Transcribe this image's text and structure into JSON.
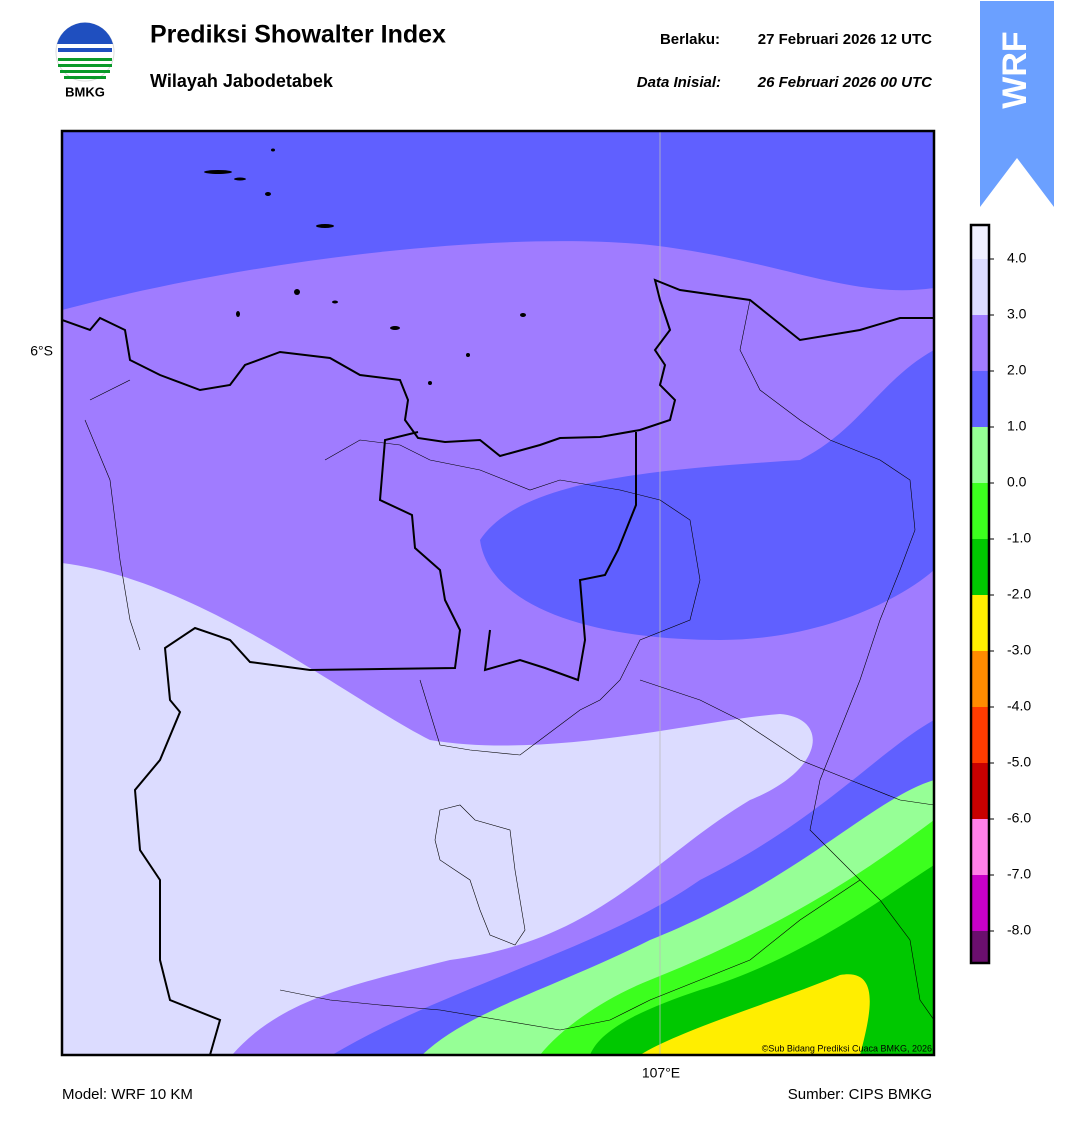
{
  "header": {
    "title": "Prediksi Showalter Index",
    "subtitle": "Wilayah Jabodetabek",
    "valid_label": "Berlaku:",
    "valid_time": "27 Februari 2026 12 UTC",
    "init_label": "Data Inisial:",
    "init_time": "26 Februari 2026 00 UTC",
    "logo_text": "BMKG",
    "banner": "WRF"
  },
  "map": {
    "lat_label": "6°S",
    "lon_label": "107°E",
    "copyright": "©Sub Bidang Prediksi Cuaca BMKG, 2026"
  },
  "colorbar": {
    "colors": [
      "#f0f0ff",
      "#dcdcff",
      "#a07cff",
      "#6060ff",
      "#96ff96",
      "#3cff1e",
      "#00c800",
      "#ffee00",
      "#ff8c00",
      "#ff3c00",
      "#c80000",
      "#ff80e8",
      "#c800c8",
      "#6b0f6e"
    ],
    "ticks": [
      {
        "value": 4,
        "label": "4.0"
      },
      {
        "value": 3,
        "label": "3.0"
      },
      {
        "value": 2,
        "label": "2.0"
      },
      {
        "value": 1,
        "label": "1.0"
      },
      {
        "value": 0,
        "label": "0.0"
      },
      {
        "value": -1,
        "label": "-1.0"
      },
      {
        "value": -2,
        "label": "-2.0"
      },
      {
        "value": -3,
        "label": "-3.0"
      },
      {
        "value": -4,
        "label": "-4.0"
      },
      {
        "value": -5,
        "label": "-5.0"
      },
      {
        "value": -6,
        "label": "-6.0"
      },
      {
        "value": -7,
        "label": "-7.0"
      },
      {
        "value": -8,
        "label": "-8.0"
      }
    ]
  },
  "footer": {
    "model": "Model: WRF 10 KM",
    "source": "Sumber: CIPS BMKG"
  }
}
